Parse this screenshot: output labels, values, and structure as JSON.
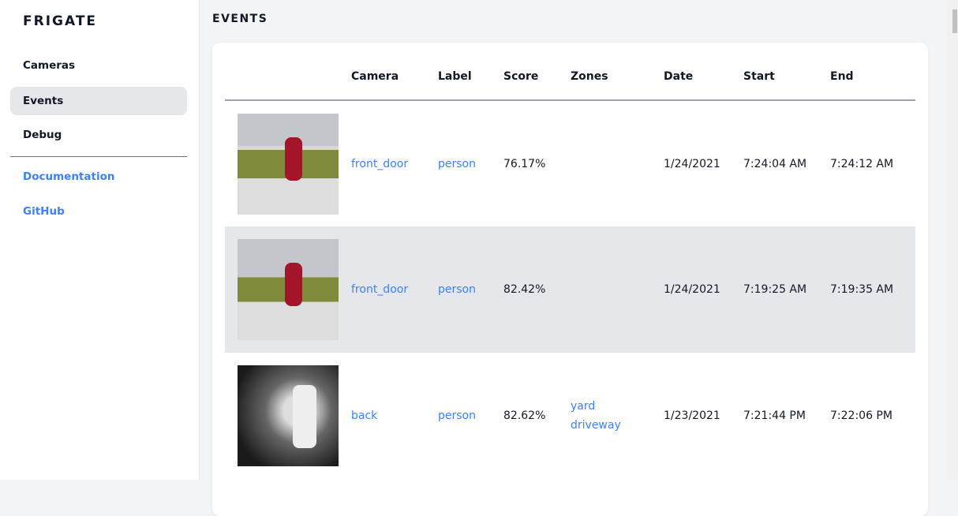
{
  "sidebar": {
    "brand": "FRIGATE",
    "items": [
      {
        "label": "Cameras"
      },
      {
        "label": "Events",
        "active": true
      },
      {
        "label": "Debug"
      }
    ],
    "links": [
      {
        "label": "Documentation"
      },
      {
        "label": "GitHub"
      }
    ]
  },
  "page": {
    "title": "EVENTS"
  },
  "table": {
    "headers": [
      "",
      "Camera",
      "Label",
      "Score",
      "Zones",
      "Date",
      "Start",
      "End"
    ],
    "rows": [
      {
        "camera": "front_door",
        "label": "person",
        "score": "76.17%",
        "zones": [
          "",
          ""
        ],
        "date": "1/24/2021",
        "start": "7:24:04 AM",
        "end": "7:24:12 AM"
      },
      {
        "camera": "front_door",
        "label": "person",
        "score": "82.42%",
        "zones": [
          "",
          ""
        ],
        "date": "1/24/2021",
        "start": "7:19:25 AM",
        "end": "7:19:35 AM"
      },
      {
        "camera": "back",
        "label": "person",
        "score": "82.62%",
        "zones": [
          "yard",
          "driveway"
        ],
        "date": "1/23/2021",
        "start": "7:21:44 PM",
        "end": "7:22:06 PM"
      }
    ]
  },
  "colors": {
    "link": "#3b82f6",
    "active_bg": "#e5e7eb",
    "page_bg": "#f3f4f6"
  }
}
